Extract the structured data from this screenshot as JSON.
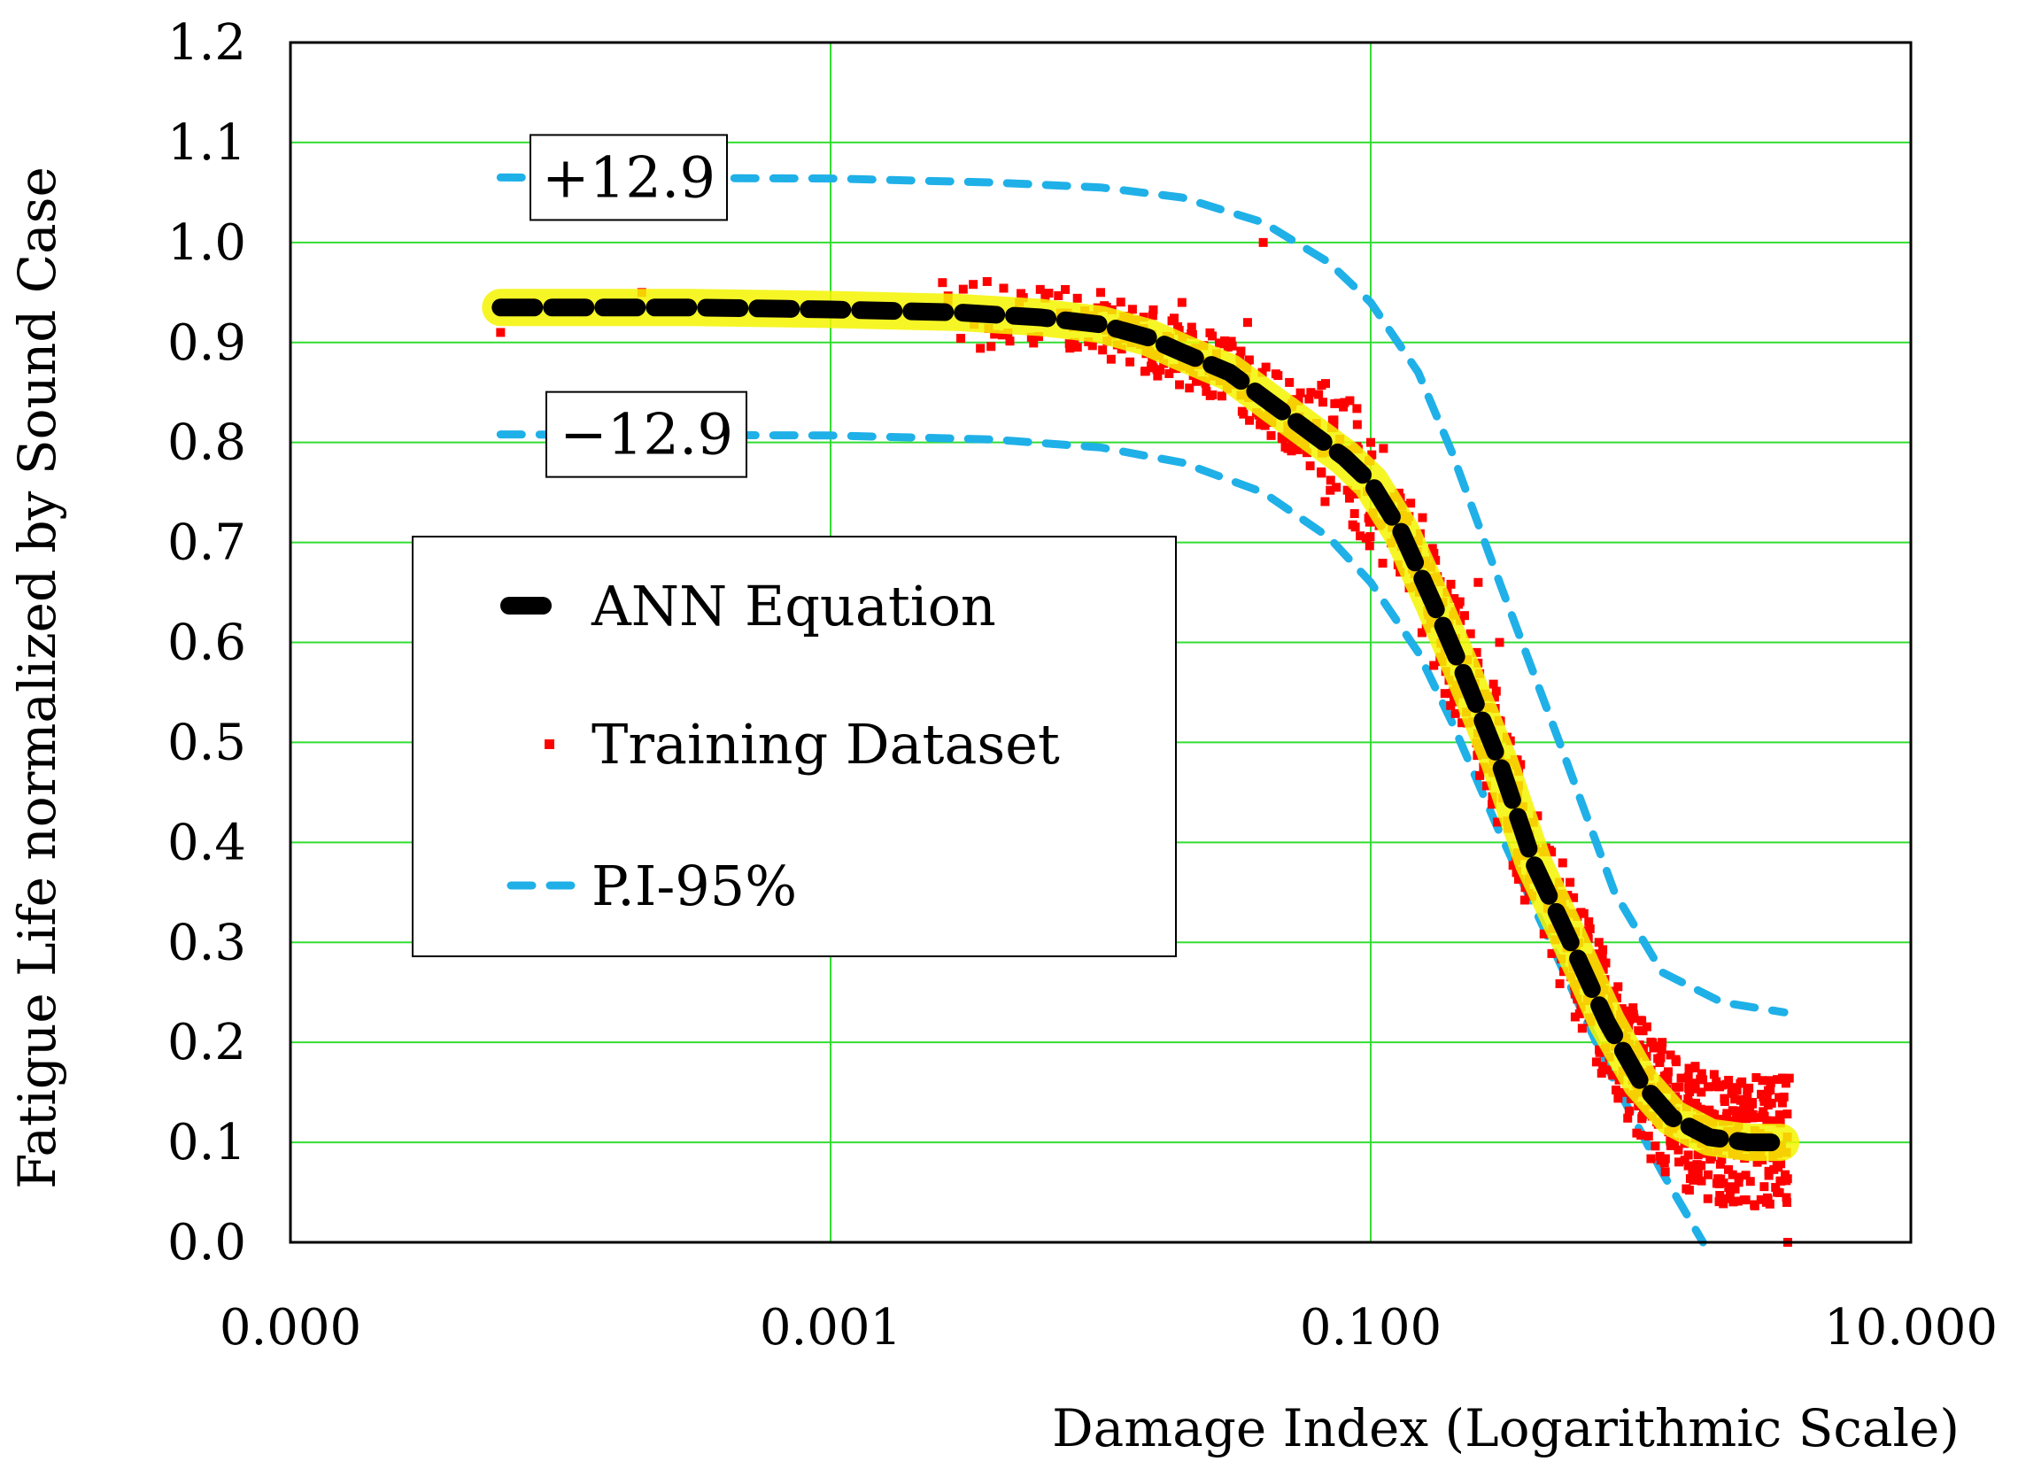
{
  "chart_data": {
    "type": "scatter",
    "title": "",
    "xlabel": "Damage Index (Logarithmic Scale)",
    "ylabel": "Fatigue Life normalized by Sound Case",
    "xscale": "log",
    "xlim": [
      1e-05,
      10
    ],
    "ylim": [
      0,
      1.2
    ],
    "xticks": [
      {
        "value": 1e-05,
        "label": "0.000"
      },
      {
        "value": 0.001,
        "label": "0.001"
      },
      {
        "value": 0.1,
        "label": "0.100"
      },
      {
        "value": 10,
        "label": "10.000"
      }
    ],
    "yticks": [
      {
        "value": 0.0,
        "label": "0.0"
      },
      {
        "value": 0.1,
        "label": "0.1"
      },
      {
        "value": 0.2,
        "label": "0.2"
      },
      {
        "value": 0.3,
        "label": "0.3"
      },
      {
        "value": 0.4,
        "label": "0.4"
      },
      {
        "value": 0.5,
        "label": "0.5"
      },
      {
        "value": 0.6,
        "label": "0.6"
      },
      {
        "value": 0.7,
        "label": "0.7"
      },
      {
        "value": 0.8,
        "label": "0.8"
      },
      {
        "value": 0.9,
        "label": "0.9"
      },
      {
        "value": 1.0,
        "label": "1.0"
      },
      {
        "value": 1.1,
        "label": "1.1"
      },
      {
        "value": 1.2,
        "label": "1.2"
      }
    ],
    "grid": true,
    "legend_position": "center-left",
    "series": [
      {
        "name": "ANN Equation",
        "style": "dashed-thick",
        "color": "#000000",
        "highlight": "#f5f500",
        "x": [
          6e-05,
          0.0003,
          0.001,
          0.003,
          0.006,
          0.01,
          0.015,
          0.02,
          0.03,
          0.04,
          0.06,
          0.08,
          0.1,
          0.13,
          0.17,
          0.22,
          0.3,
          0.4,
          0.55,
          0.75,
          1.0,
          1.3,
          1.8,
          2.5,
          3.3
        ],
        "y": [
          0.935,
          0.935,
          0.933,
          0.93,
          0.925,
          0.918,
          0.905,
          0.89,
          0.87,
          0.845,
          0.81,
          0.785,
          0.76,
          0.71,
          0.64,
          0.57,
          0.48,
          0.38,
          0.3,
          0.22,
          0.16,
          0.125,
          0.105,
          0.1,
          0.1
        ]
      },
      {
        "name": "Training Dataset",
        "style": "markers",
        "color": "#ff0000",
        "x": [
          6e-05,
          0.0002,
          0.0025,
          0.005,
          0.008,
          0.01,
          0.012,
          0.015,
          0.02,
          0.025,
          0.03,
          0.035,
          0.04,
          0.05,
          0.06,
          0.08,
          0.1,
          0.12,
          0.15,
          0.18,
          0.22,
          0.25,
          0.3,
          0.35,
          0.4,
          0.5,
          0.6,
          0.7,
          0.8,
          1.0,
          1.2,
          1.5,
          1.8,
          2.2,
          2.7,
          3.2,
          3.5
        ],
        "y": [
          0.91,
          0.95,
          0.93,
          0.94,
          0.9,
          0.95,
          0.92,
          0.9,
          0.94,
          0.88,
          0.87,
          0.92,
          1.0,
          0.86,
          0.85,
          0.84,
          0.8,
          0.72,
          0.68,
          0.62,
          0.56,
          0.66,
          0.6,
          0.45,
          0.42,
          0.36,
          0.33,
          0.3,
          0.22,
          0.15,
          0.2,
          0.14,
          0.12,
          0.1,
          0.08,
          0.05,
          0.0
        ]
      },
      {
        "name": "P.I-95%",
        "style": "dashed",
        "color": "#1fb0e8",
        "bands": [
          {
            "label": "+12.9",
            "x": [
              6e-05,
              0.001,
              0.004,
              0.01,
              0.02,
              0.04,
              0.07,
              0.1,
              0.15,
              0.2,
              0.3,
              0.5,
              0.8,
              1.2,
              2.0,
              3.4
            ],
            "y": [
              1.065,
              1.064,
              1.06,
              1.055,
              1.045,
              1.02,
              0.98,
              0.94,
              0.87,
              0.79,
              0.66,
              0.5,
              0.35,
              0.27,
              0.24,
              0.23
            ]
          },
          {
            "label": "−12.9",
            "x": [
              6e-05,
              0.001,
              0.004,
              0.01,
              0.02,
              0.04,
              0.07,
              0.1,
              0.15,
              0.2,
              0.3,
              0.5,
              0.8,
              1.2,
              1.7
            ],
            "y": [
              0.808,
              0.807,
              0.803,
              0.795,
              0.78,
              0.75,
              0.705,
              0.66,
              0.59,
              0.52,
              0.41,
              0.28,
              0.16,
              0.07,
              0.0
            ]
          }
        ]
      }
    ],
    "annotations": [
      {
        "text": "+12.9",
        "target_series": "P.I-95%",
        "at": "upper band start"
      },
      {
        "text": "−12.9",
        "target_series": "P.I-95%",
        "at": "lower band start"
      }
    ],
    "legend": [
      "ANN Equation",
      "Training Dataset",
      "P.I-95%"
    ]
  },
  "colors": {
    "grid": "#33dd33",
    "ann": "#000000",
    "ann_glow": "#f5f500",
    "points": "#ff0000",
    "band": "#1fb0e8"
  }
}
